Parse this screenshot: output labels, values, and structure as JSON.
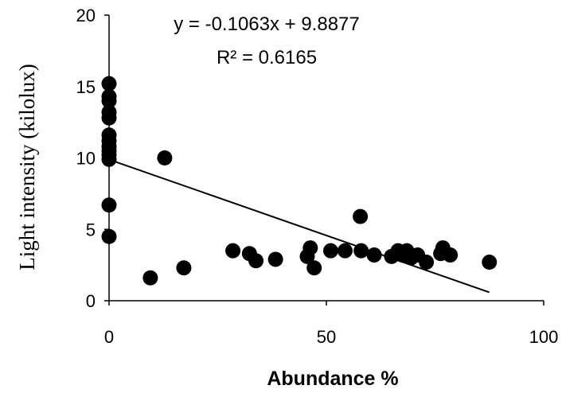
{
  "chart_data": {
    "type": "scatter",
    "xlabel": "Abundance %",
    "ylabel": "Light intensity (kilolux)",
    "xlim": [
      0,
      100
    ],
    "ylim": [
      0,
      20
    ],
    "xticks": [
      0,
      50,
      100
    ],
    "yticks": [
      0,
      5,
      10,
      15,
      20
    ],
    "grid": false,
    "legend": "none",
    "marker_color": "#000000",
    "trendline": {
      "type": "linear",
      "slope": -0.1063,
      "intercept": 9.8877,
      "x_range": [
        0,
        87.5
      ],
      "equation_label": "y = -0.1063x + 9.8877",
      "r2_label": "R² = 0.6165"
    },
    "series": [
      {
        "points": [
          [
            0,
            15.2
          ],
          [
            0,
            14.3
          ],
          [
            0,
            14.0
          ],
          [
            0,
            13.2
          ],
          [
            0,
            12.8
          ],
          [
            0,
            11.6
          ],
          [
            0,
            11.2
          ],
          [
            0,
            10.8
          ],
          [
            0,
            10.5
          ],
          [
            0,
            10.2
          ],
          [
            0,
            9.9
          ],
          [
            0,
            6.7
          ],
          [
            0,
            4.5
          ],
          [
            9.5,
            1.6
          ],
          [
            12.8,
            10.0
          ],
          [
            17.2,
            2.3
          ],
          [
            28.5,
            3.5
          ],
          [
            32.3,
            3.3
          ],
          [
            33.8,
            2.8
          ],
          [
            38.3,
            2.9
          ],
          [
            45.6,
            3.1
          ],
          [
            46.3,
            3.7
          ],
          [
            47.2,
            2.3
          ],
          [
            51.0,
            3.5
          ],
          [
            54.3,
            3.5
          ],
          [
            57.8,
            5.9
          ],
          [
            58.0,
            3.5
          ],
          [
            61.0,
            3.2
          ],
          [
            65.0,
            3.1
          ],
          [
            66.5,
            3.5
          ],
          [
            67.5,
            3.2
          ],
          [
            68.5,
            3.5
          ],
          [
            69.5,
            3.0
          ],
          [
            71.0,
            3.2
          ],
          [
            73.0,
            2.7
          ],
          [
            76.3,
            3.3
          ],
          [
            76.8,
            3.7
          ],
          [
            78.5,
            3.2
          ],
          [
            87.5,
            2.7
          ]
        ]
      }
    ]
  }
}
